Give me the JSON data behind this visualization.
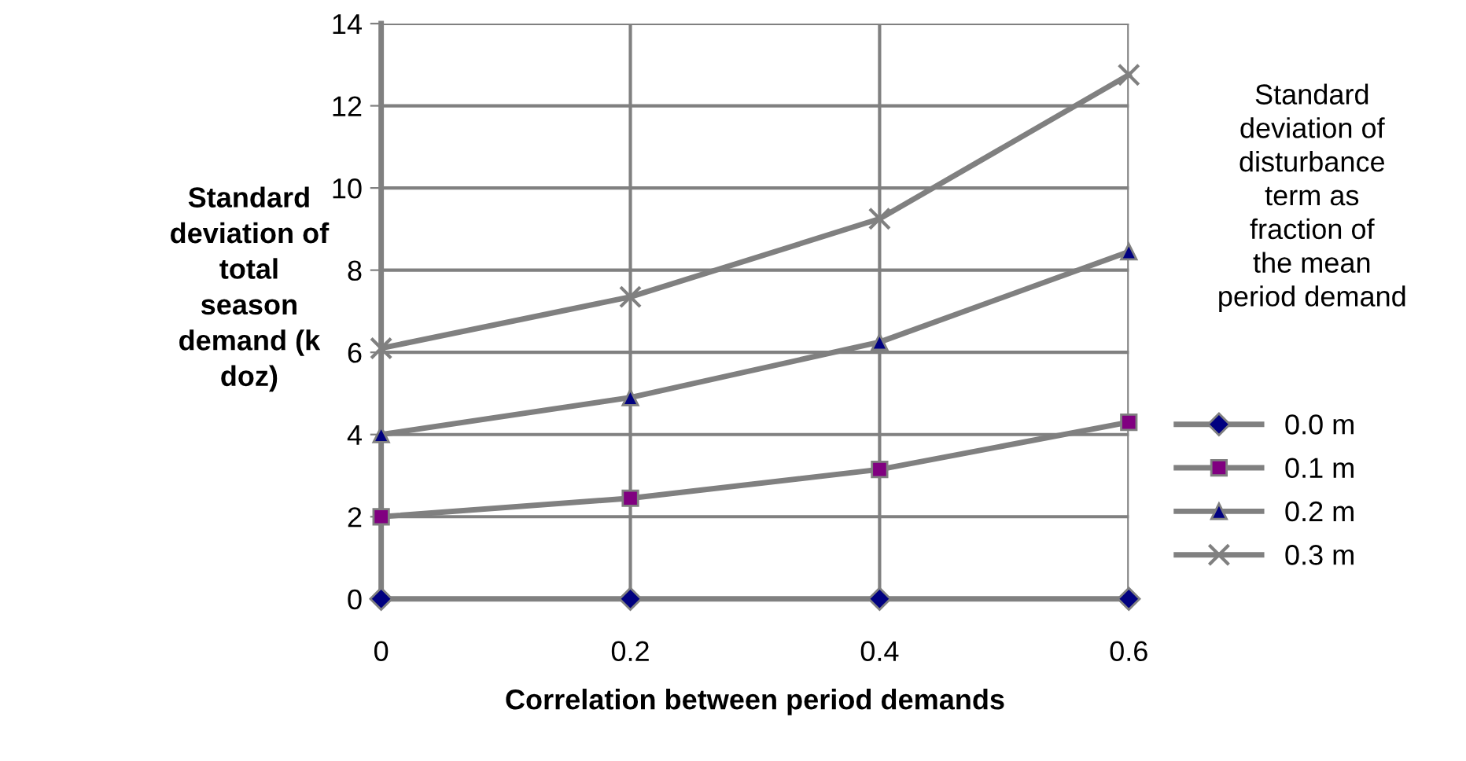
{
  "chart_data": {
    "type": "line",
    "xlabel": "Correlation between period demands",
    "ylabel": "Standard\ndeviation of\ntotal\nseason\ndemand (k\ndoz)",
    "legend_title": "Standard\ndeviation of\ndisturbance\nterm as\nfraction of\nthe mean\nperiod demand",
    "x": [
      0,
      0.2,
      0.4,
      0.6
    ],
    "xlim": [
      0,
      0.6
    ],
    "xticks": [
      0,
      0.2,
      0.4,
      0.6
    ],
    "ylim": [
      0,
      14
    ],
    "yticks": [
      0,
      2,
      4,
      6,
      8,
      10,
      12,
      14
    ],
    "grid": true,
    "legend": "right",
    "line_style": "solid",
    "series": [
      {
        "name": "0.0 m",
        "color": "#000080",
        "marker": "diamond",
        "values": [
          0,
          0,
          0,
          0
        ]
      },
      {
        "name": "0.1 m",
        "color": "#800080",
        "marker": "square",
        "values": [
          2.0,
          2.45,
          3.15,
          4.3
        ]
      },
      {
        "name": "0.2 m",
        "color": "#000080",
        "marker": "triangle",
        "values": [
          4.0,
          4.9,
          6.25,
          8.45
        ]
      },
      {
        "name": "0.3 m",
        "color": "#808080",
        "marker": "cross",
        "values": [
          6.1,
          7.35,
          9.25,
          12.75
        ]
      }
    ]
  }
}
